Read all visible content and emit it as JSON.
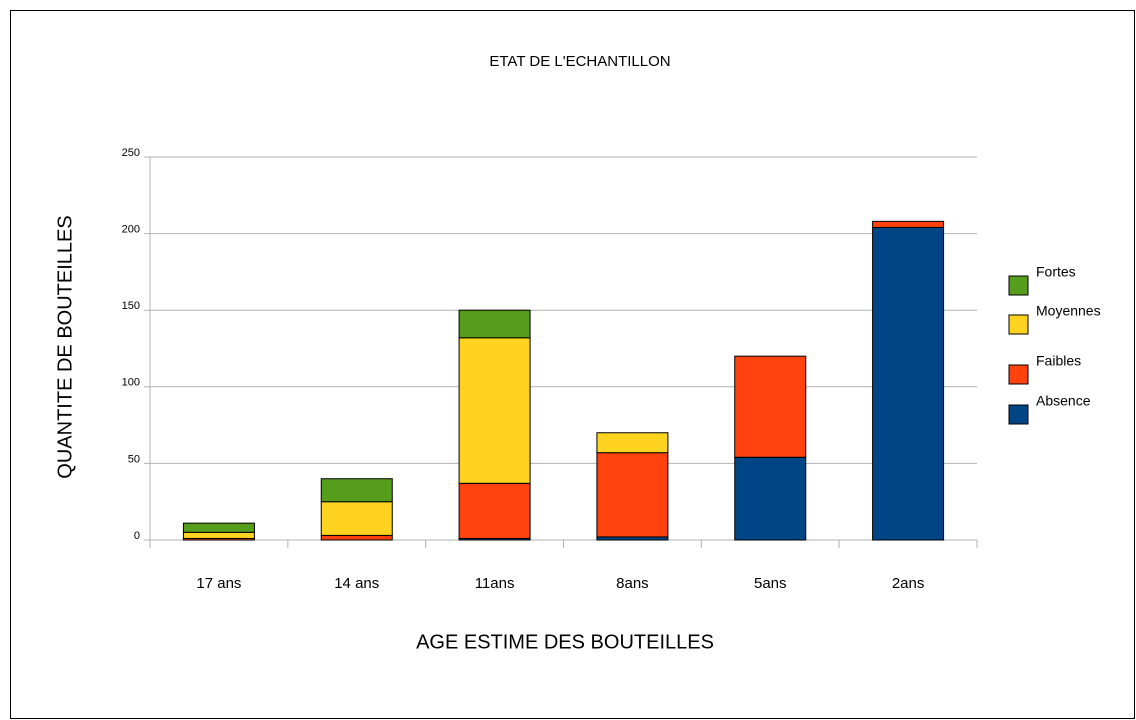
{
  "chart_data": {
    "type": "stacked_bar",
    "title": "ETAT DE L'ECHANTILLON",
    "x_label": "AGE ESTIME DES BOUTEILLES",
    "y_label": "QUANTITE DE BOUTEILLES",
    "categories": [
      "17 ans",
      "14 ans",
      "11ans",
      "8ans",
      "5ans",
      "2ans"
    ],
    "series": [
      {
        "name": "Absence",
        "color": "#004586",
        "values": [
          0,
          0,
          1,
          2,
          54,
          204
        ]
      },
      {
        "name": "Faibles",
        "color": "#ff420e",
        "values": [
          1,
          3,
          36,
          55,
          66,
          4
        ]
      },
      {
        "name": "Moyennes",
        "color": "#ffd320",
        "values": [
          4,
          22,
          95,
          13,
          0,
          0
        ]
      },
      {
        "name": "Fortes",
        "color": "#579d1c",
        "values": [
          6,
          15,
          18,
          0,
          0,
          0
        ]
      }
    ],
    "ylim": [
      0,
      250
    ],
    "yticks": [
      0,
      50,
      100,
      150,
      200,
      250
    ],
    "grid": true,
    "legend": "right"
  }
}
